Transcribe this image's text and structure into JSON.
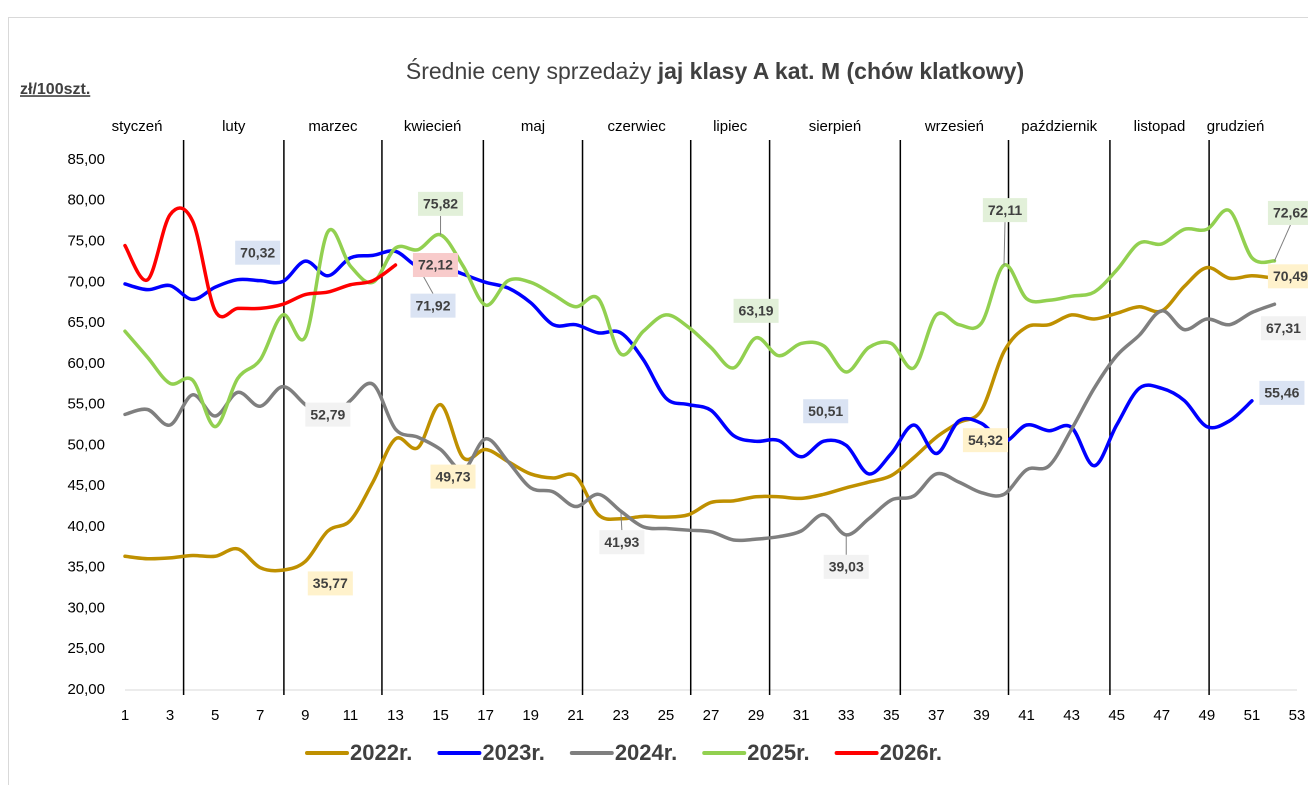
{
  "chart_data": {
    "type": "line",
    "title": "Średnie ceny sprzedaży ",
    "title_emphasis": "jaj klasy A kat.  M (chów klatkowy)",
    "y_label": "zł/100szt.",
    "months": [
      "styczeń",
      "luty",
      "marzec",
      "kwiecień",
      "maj",
      "czerwiec",
      "lipiec",
      "sierpień",
      "wrzesień",
      "październik",
      "listopad",
      "grudzień"
    ],
    "month_lines": [
      3.6,
      8.05,
      12.4,
      16.9,
      21.3,
      26.1,
      29.6,
      35.4,
      40.2,
      44.7,
      49.1
    ],
    "x": [
      1,
      2,
      3,
      4,
      5,
      6,
      7,
      8,
      9,
      10,
      11,
      12,
      13,
      14,
      15,
      16,
      17,
      18,
      19,
      20,
      21,
      22,
      23,
      24,
      25,
      26,
      27,
      28,
      29,
      30,
      31,
      32,
      33,
      34,
      35,
      36,
      37,
      38,
      39,
      40,
      41,
      42,
      43,
      44,
      45,
      46,
      47,
      48,
      49,
      50,
      51,
      52
    ],
    "xlim": [
      1,
      53
    ],
    "xticks": [
      1,
      3,
      5,
      7,
      9,
      11,
      13,
      15,
      17,
      19,
      21,
      23,
      25,
      27,
      29,
      31,
      33,
      35,
      37,
      39,
      41,
      43,
      45,
      47,
      49,
      51,
      53
    ],
    "ylim": [
      20,
      85
    ],
    "yticks": [
      {
        "value": 20,
        "label": "20,00"
      },
      {
        "value": 25,
        "label": "25,00"
      },
      {
        "value": 30,
        "label": "30,00"
      },
      {
        "value": 35,
        "label": "35,00"
      },
      {
        "value": 40,
        "label": "40,00"
      },
      {
        "value": 45,
        "label": "45,00"
      },
      {
        "value": 50,
        "label": "50,00"
      },
      {
        "value": 55,
        "label": "55,00"
      },
      {
        "value": 60,
        "label": "60,00"
      },
      {
        "value": 65,
        "label": "65,00"
      },
      {
        "value": 70,
        "label": "70,00"
      },
      {
        "value": 75,
        "label": "75,00"
      },
      {
        "value": 80,
        "label": "80,00"
      },
      {
        "value": 85,
        "label": "85,00"
      }
    ],
    "grid": false,
    "legend": "bottom",
    "series": [
      {
        "name": "2022r.",
        "color": "#bf9000",
        "label_bg": "#fff2cc",
        "values": [
          36.4,
          36.1,
          36.2,
          36.5,
          36.4,
          37.3,
          35.0,
          34.7,
          35.77,
          39.5,
          40.8,
          45.5,
          50.8,
          49.73,
          55.0,
          48.5,
          49.5,
          48.0,
          46.5,
          46.0,
          46.2,
          41.5,
          41.0,
          41.3,
          41.2,
          41.5,
          43.0,
          43.2,
          43.7,
          43.7,
          43.5,
          44.0,
          44.8,
          45.5,
          46.3,
          48.5,
          51.0,
          52.8,
          54.32,
          61.5,
          64.5,
          64.8,
          66.0,
          65.5,
          66.2,
          67.0,
          66.5,
          69.5,
          71.8,
          70.5,
          70.8,
          70.49
        ],
        "value_labels": [
          null,
          null,
          null,
          null,
          null,
          null,
          null,
          null,
          "35,77",
          null,
          null,
          null,
          null,
          "49,73",
          null,
          null,
          null,
          null,
          null,
          null,
          null,
          null,
          null,
          null,
          null,
          null,
          null,
          null,
          null,
          null,
          null,
          null,
          null,
          null,
          null,
          null,
          null,
          null,
          "54,32",
          null,
          null,
          null,
          null,
          null,
          null,
          null,
          null,
          null,
          null,
          null,
          null,
          "70,49"
        ]
      },
      {
        "name": "2023r.",
        "color": "#0000ff",
        "label_bg": "#dae3f3",
        "values": [
          69.8,
          69.1,
          69.6,
          67.9,
          69.4,
          70.32,
          70.2,
          70.1,
          72.6,
          70.8,
          73.0,
          73.3,
          73.8,
          71.92,
          72.0,
          71.0,
          70.0,
          69.3,
          67.5,
          64.8,
          64.8,
          63.8,
          63.8,
          60.5,
          55.8,
          55.0,
          54.3,
          51.2,
          50.5,
          50.6,
          48.6,
          50.51,
          50.0,
          46.5,
          49.0,
          52.5,
          49.0,
          53.0,
          52.7,
          50.5,
          52.5,
          51.8,
          52.2,
          47.5,
          52.5,
          57.0,
          57.0,
          55.5,
          52.3,
          53.0,
          55.46,
          null
        ],
        "value_labels": [
          null,
          null,
          null,
          null,
          null,
          "70,32",
          null,
          null,
          null,
          null,
          null,
          null,
          null,
          "71,92",
          null,
          null,
          null,
          null,
          null,
          null,
          null,
          null,
          null,
          null,
          null,
          null,
          null,
          null,
          null,
          null,
          null,
          "50,51",
          null,
          null,
          null,
          null,
          null,
          null,
          null,
          null,
          null,
          null,
          null,
          null,
          null,
          null,
          null,
          null,
          null,
          null,
          "55,46",
          null
        ]
      },
      {
        "name": "2024r.",
        "color": "#7f7f7f",
        "label_bg": "#f2f2f2",
        "values": [
          53.8,
          54.4,
          52.5,
          56.2,
          53.6,
          56.5,
          54.8,
          57.2,
          55.0,
          52.79,
          55.5,
          57.5,
          52.0,
          51.0,
          49.5,
          47.0,
          50.8,
          48.0,
          44.8,
          44.3,
          42.5,
          44.0,
          41.93,
          40.0,
          39.8,
          39.6,
          39.4,
          38.4,
          38.5,
          38.8,
          39.5,
          41.5,
          39.03,
          41.0,
          43.3,
          43.8,
          46.5,
          45.5,
          44.2,
          44.0,
          47.0,
          47.5,
          52.0,
          57.0,
          61.0,
          63.5,
          66.5,
          64.2,
          65.5,
          64.8,
          66.3,
          67.31
        ],
        "value_labels": [
          null,
          null,
          null,
          null,
          null,
          null,
          null,
          null,
          null,
          "52,79",
          null,
          null,
          null,
          null,
          null,
          null,
          null,
          null,
          null,
          null,
          null,
          null,
          "41,93",
          null,
          null,
          null,
          null,
          null,
          null,
          null,
          null,
          null,
          "39,03",
          null,
          null,
          null,
          null,
          null,
          null,
          null,
          null,
          null,
          null,
          null,
          null,
          null,
          null,
          null,
          null,
          null,
          null,
          "67,31"
        ]
      },
      {
        "name": "2025r.",
        "color": "#92d050",
        "label_bg": "#e2f0d9",
        "values": [
          64.0,
          60.8,
          57.6,
          58.0,
          52.3,
          58.2,
          60.5,
          66.0,
          63.3,
          76.2,
          72.0,
          70.0,
          74.2,
          74.0,
          75.82,
          72.0,
          67.2,
          70.2,
          70.0,
          68.5,
          67.0,
          68.0,
          61.2,
          64.0,
          66.0,
          64.5,
          62.0,
          59.5,
          63.19,
          61.0,
          62.5,
          62.2,
          59.0,
          62.0,
          62.5,
          59.5,
          66.0,
          64.8,
          65.0,
          72.11,
          68.0,
          67.8,
          68.3,
          68.8,
          71.5,
          74.8,
          74.7,
          76.5,
          76.5,
          78.8,
          73.0,
          72.62
        ],
        "value_labels": [
          null,
          null,
          null,
          null,
          null,
          null,
          null,
          null,
          null,
          null,
          null,
          null,
          null,
          null,
          "75,82",
          null,
          null,
          null,
          null,
          null,
          null,
          null,
          null,
          null,
          null,
          null,
          null,
          null,
          "63,19",
          null,
          null,
          null,
          null,
          null,
          null,
          null,
          null,
          null,
          null,
          "72,11",
          null,
          null,
          null,
          null,
          null,
          null,
          null,
          null,
          null,
          null,
          null,
          "72,62"
        ]
      },
      {
        "name": "2026r.",
        "color": "#ff0000",
        "label_bg": "#f8cbcb",
        "values": [
          74.5,
          70.3,
          78.3,
          77.5,
          66.5,
          66.8,
          66.8,
          67.3,
          68.5,
          68.8,
          69.7,
          70.2,
          72.12,
          null,
          null,
          null,
          null,
          null,
          null,
          null,
          null,
          null,
          null,
          null,
          null,
          null,
          null,
          null,
          null,
          null,
          null,
          null,
          null,
          null,
          null,
          null,
          null,
          null,
          null,
          null,
          null,
          null,
          null,
          null,
          null,
          null,
          null,
          null,
          null,
          null,
          null,
          null
        ],
        "value_labels": [
          null,
          null,
          null,
          null,
          null,
          null,
          null,
          null,
          null,
          null,
          null,
          null,
          "72,12",
          null,
          null,
          null,
          null,
          null,
          null,
          null,
          null,
          null,
          null,
          null,
          null,
          null,
          null,
          null,
          null,
          null,
          null,
          null,
          null,
          null,
          null,
          null,
          null,
          null,
          null,
          null,
          null,
          null,
          null,
          null,
          null,
          null,
          null,
          null,
          null,
          null,
          null,
          null
        ]
      }
    ]
  }
}
